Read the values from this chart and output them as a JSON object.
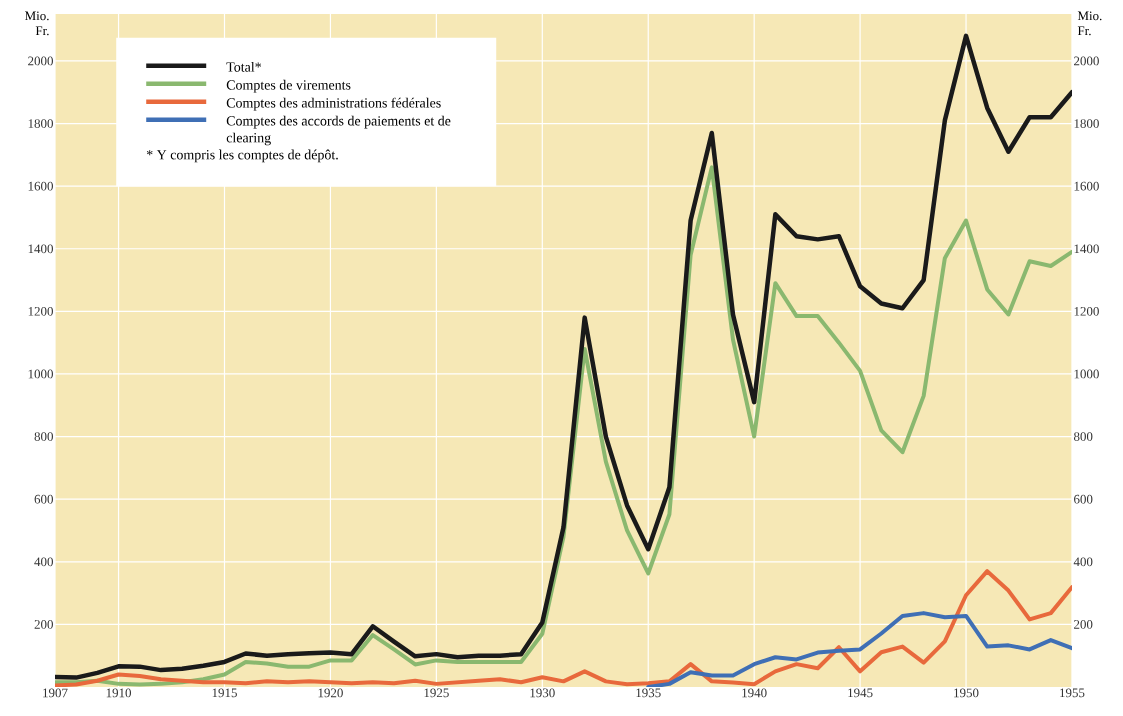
{
  "chart_data": {
    "type": "line",
    "ylabel": "Mio. Fr.",
    "y2label": "Mio. Fr.",
    "x": [
      1907,
      1908,
      1909,
      1910,
      1911,
      1912,
      1913,
      1914,
      1915,
      1916,
      1917,
      1918,
      1919,
      1920,
      1921,
      1922,
      1923,
      1924,
      1925,
      1926,
      1927,
      1928,
      1929,
      1930,
      1931,
      1932,
      1933,
      1934,
      1935,
      1936,
      1937,
      1938,
      1939,
      1940,
      1941,
      1942,
      1943,
      1944,
      1945,
      1946,
      1947,
      1948,
      1949,
      1950,
      1951,
      1952,
      1953,
      1954,
      1955
    ],
    "series": [
      {
        "name": "Total*",
        "color": "#1a1a1a",
        "values": [
          32,
          30,
          45,
          66,
          65,
          54,
          58,
          68,
          80,
          107,
          100,
          105,
          108,
          110,
          105,
          194,
          145,
          98,
          105,
          95,
          100,
          100,
          105,
          206,
          510,
          1180,
          800,
          580,
          440,
          638,
          1490,
          1770,
          1190,
          910,
          1510,
          1440,
          1430,
          1440,
          1280,
          1225,
          1210,
          1300,
          1810,
          2080,
          1850,
          1710,
          1820,
          1820,
          1900
        ]
      },
      {
        "name": "Comptes de virements",
        "color": "#8ab86f",
        "values": [
          15,
          15,
          20,
          10,
          8,
          10,
          15,
          25,
          40,
          80,
          75,
          65,
          65,
          85,
          85,
          166,
          120,
          72,
          85,
          80,
          80,
          80,
          80,
          170,
          480,
          1080,
          720,
          500,
          363,
          552,
          1380,
          1660,
          1110,
          800,
          1290,
          1185,
          1185,
          1100,
          1010,
          820,
          750,
          930,
          1370,
          1490,
          1270,
          1190,
          1360,
          1345,
          1390
        ]
      },
      {
        "name": "Comptes des administrations fédérales",
        "color": "#e8693c",
        "values": [
          5,
          8,
          20,
          40,
          35,
          25,
          20,
          15,
          15,
          12,
          18,
          15,
          18,
          15,
          12,
          15,
          12,
          20,
          10,
          15,
          20,
          25,
          15,
          31,
          18,
          50,
          18,
          9,
          12,
          18,
          73,
          18,
          14,
          9,
          50,
          73,
          60,
          127,
          50,
          111,
          129,
          78,
          146,
          293,
          370,
          308,
          216,
          236,
          319
        ]
      },
      {
        "name": "Comptes des accords de paiements et de clearing",
        "color": "#3f6fb5",
        "values": [
          null,
          null,
          null,
          null,
          null,
          null,
          null,
          null,
          null,
          null,
          null,
          null,
          null,
          null,
          null,
          null,
          null,
          null,
          null,
          null,
          null,
          null,
          null,
          null,
          null,
          null,
          null,
          null,
          0,
          10,
          47,
          37,
          37,
          73,
          95,
          88,
          110,
          116,
          120,
          171,
          227,
          236,
          223,
          227,
          129,
          133,
          120,
          150,
          124
        ]
      }
    ],
    "xlim": [
      1907,
      1955
    ],
    "xticks": [
      1907,
      1910,
      1915,
      1920,
      1925,
      1930,
      1935,
      1940,
      1945,
      1950,
      1955
    ],
    "ylim": [
      0,
      2150
    ],
    "yticks": [
      200,
      400,
      600,
      800,
      1000,
      1200,
      1400,
      1600,
      1800,
      2000
    ],
    "y2lim": [
      0,
      2150
    ],
    "y2ticks": [
      200,
      400,
      600,
      800,
      1000,
      1200,
      1400,
      1600,
      1800,
      2000
    ],
    "annotations": [
      "* Y compris les comptes de dépôt."
    ],
    "grid": true,
    "legend": "top left",
    "marker": "none",
    "line_style": "solid"
  }
}
